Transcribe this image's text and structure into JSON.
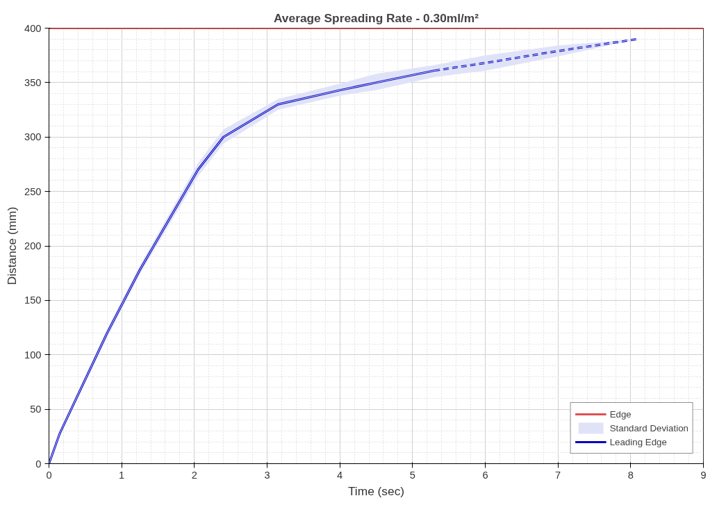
{
  "chart_data": {
    "type": "line",
    "title": "Average Spreading Rate - 0.30ml/m²",
    "xlabel": "Time (sec)",
    "ylabel": "Distance (mm)",
    "xlim": [
      0,
      9
    ],
    "xticks": [
      0,
      1,
      2,
      3,
      4,
      5,
      6,
      7,
      8,
      9
    ],
    "ylim": [
      0,
      400
    ],
    "yticks": [
      0,
      50,
      100,
      150,
      200,
      250,
      300,
      350,
      400
    ],
    "grid": true,
    "legend": "bottom right",
    "series": [
      {
        "name": "Edge",
        "color": "#e05050",
        "x": [
          0,
          9
        ],
        "values": [
          400,
          400
        ],
        "line_style": "solid"
      },
      {
        "name": "Standard Deviation",
        "type": "line",
        "color": "#e0e3f8",
        "x": [
          0,
          0.15,
          0.8,
          1.25,
          2.05,
          2.4,
          3.15,
          4.0,
          4.5,
          5.3,
          6,
          7,
          8.1
        ],
        "values": [
          0,
          28,
          120,
          178,
          270,
          300,
          330,
          343,
          350,
          361,
          368,
          379,
          390
        ],
        "lower": [
          0,
          26,
          116,
          174,
          264,
          294,
          325,
          338,
          343,
          355,
          361,
          374,
          390
        ],
        "upper": [
          0,
          30,
          124,
          182,
          276,
          307,
          335,
          349,
          358,
          366,
          375,
          384,
          390
        ]
      },
      {
        "name": "Leading Edge",
        "color": "#0000c0",
        "x": [
          0,
          0.15,
          0.8,
          1.25,
          2.05,
          2.4,
          3.15,
          4.0,
          4.5,
          5.3
        ],
        "values": [
          0,
          28,
          120,
          178,
          270,
          300,
          330,
          343,
          350,
          361
        ],
        "line_style": "solid"
      },
      {
        "color": "#0000c0",
        "x": [
          5.3,
          6,
          7,
          8.1
        ],
        "values": [
          361,
          368,
          379,
          390
        ],
        "line_style": "dashed"
      }
    ]
  }
}
